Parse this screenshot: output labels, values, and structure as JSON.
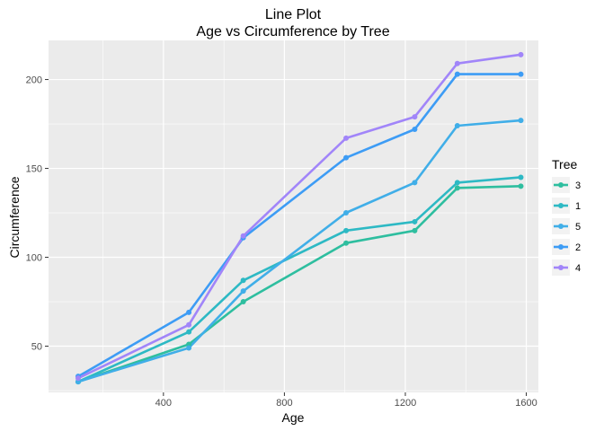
{
  "chart_data": {
    "type": "line",
    "title": "Line Plot",
    "subtitle": "Age vs Circumference by Tree",
    "xlabel": "Age",
    "ylabel": "Circumference",
    "xlim": [
      20,
      1640
    ],
    "ylim": [
      24,
      222
    ],
    "xticks": [
      400,
      800,
      1200,
      1600
    ],
    "yticks": [
      50,
      100,
      150,
      200
    ],
    "grid": true,
    "legend": {
      "title": "Tree",
      "position": "right"
    },
    "x": [
      118,
      484,
      664,
      1004,
      1231,
      1372,
      1582
    ],
    "series": [
      {
        "name": "3",
        "color": "#2EBE9F",
        "values": [
          30,
          51,
          75,
          108,
          115,
          139,
          140
        ]
      },
      {
        "name": "1",
        "color": "#2DB9C4",
        "values": [
          30,
          58,
          87,
          115,
          120,
          142,
          145
        ]
      },
      {
        "name": "5",
        "color": "#40AEE8",
        "values": [
          30,
          49,
          81,
          125,
          142,
          174,
          177
        ]
      },
      {
        "name": "2",
        "color": "#3D9CF5",
        "values": [
          33,
          69,
          111,
          156,
          172,
          203,
          203
        ]
      },
      {
        "name": "4",
        "color": "#A185F9",
        "values": [
          32,
          62,
          112,
          167,
          179,
          209,
          214
        ]
      }
    ]
  }
}
